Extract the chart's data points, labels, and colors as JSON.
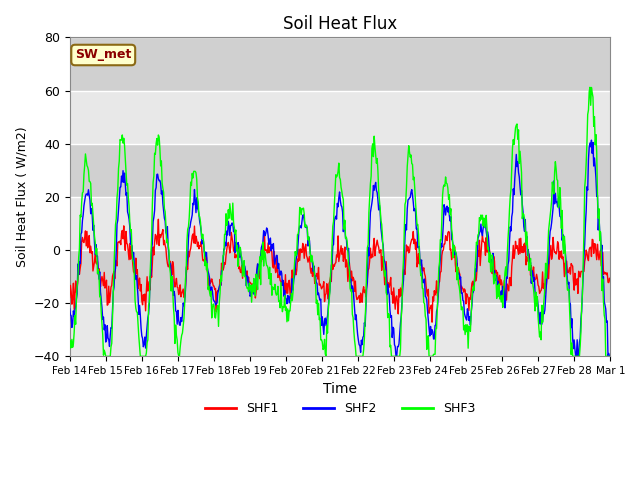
{
  "title": "Soil Heat Flux",
  "xlabel": "Time",
  "ylabel": "Soil Heat Flux ( W/m2)",
  "ylim": [
    -40,
    80
  ],
  "yticks": [
    -40,
    -20,
    0,
    20,
    40,
    60,
    80
  ],
  "bg_color": "#dcdcdc",
  "band_light": "#e8e8e8",
  "band_dark": "#d0d0d0",
  "legend_label": "SW_met",
  "legend_bg": "#ffffcc",
  "legend_border": "#8B6914",
  "series_colors": [
    "red",
    "blue",
    "lime"
  ],
  "series_names": [
    "SHF1",
    "SHF2",
    "SHF3"
  ],
  "x_labels": [
    "Feb 14",
    "Feb 15",
    "Feb 16",
    "Feb 17",
    "Feb 18",
    "Feb 19",
    "Feb 20",
    "Feb 21",
    "Feb 22",
    "Feb 23",
    "Feb 24",
    "Feb 25",
    "Feb 26",
    "Feb 27",
    "Feb 28",
    "Mar 1"
  ],
  "n_days": 15
}
